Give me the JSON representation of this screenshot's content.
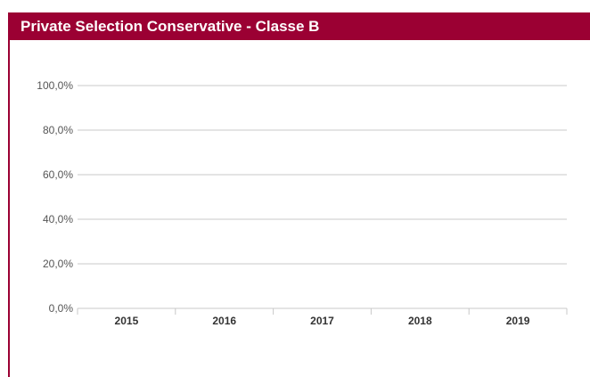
{
  "header": {
    "title": "Private Selection Conservative - Classe B"
  },
  "colors": {
    "header_bg": "#9b0033",
    "header_text": "#ffffff",
    "grid": "#c8c8c8",
    "axis_text": "#555555",
    "category_text": "#333333"
  },
  "chart_data": {
    "type": "bar",
    "title": "",
    "xlabel": "",
    "ylabel": "",
    "categories": [
      "2015",
      "2016",
      "2017",
      "2018",
      "2019"
    ],
    "series": [],
    "y_ticks": [
      "0,0%",
      "20,0%",
      "40,0%",
      "60,0%",
      "80,0%",
      "100,0%"
    ],
    "ylim": [
      0,
      100
    ],
    "grid": true,
    "legend": "none"
  }
}
